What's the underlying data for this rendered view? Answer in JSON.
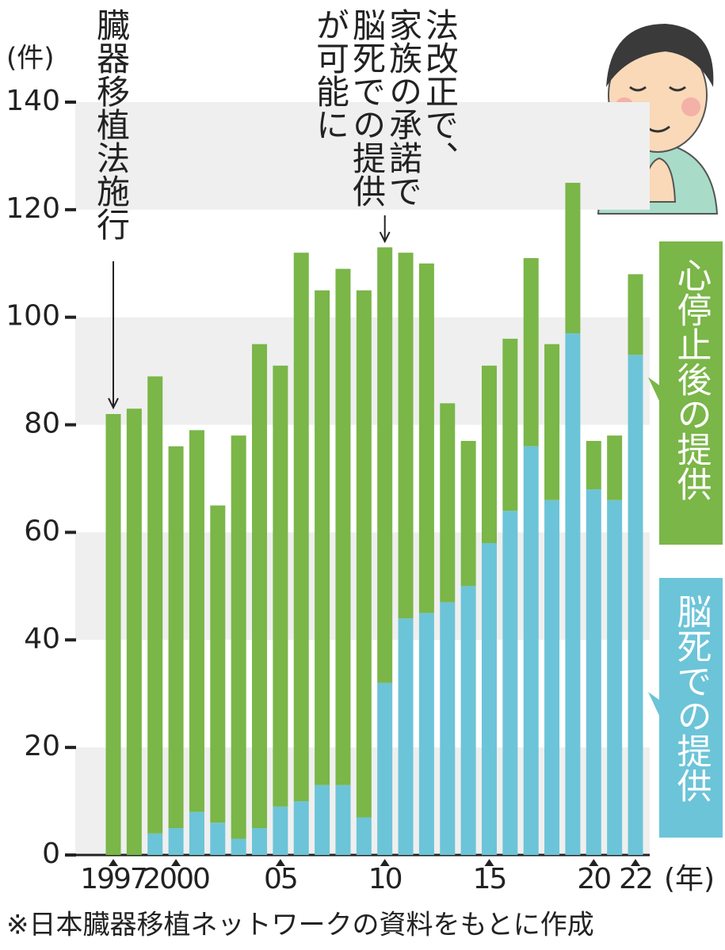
{
  "chart_data": {
    "type": "stacked_bar",
    "y_unit": "(件)",
    "x_unit": "(年)",
    "categories": [
      "1997",
      null,
      null,
      "2000",
      null,
      null,
      null,
      null,
      "05",
      null,
      null,
      null,
      null,
      "10",
      null,
      null,
      null,
      null,
      "15",
      null,
      null,
      null,
      null,
      "20",
      null,
      "22"
    ],
    "series": [
      {
        "name": "脳死での提供",
        "color": "#6cc4d8",
        "values": [
          0,
          0,
          4,
          5,
          8,
          6,
          3,
          5,
          9,
          10,
          13,
          13,
          7,
          32,
          44,
          45,
          47,
          50,
          58,
          64,
          76,
          66,
          97,
          68,
          66,
          93
        ]
      },
      {
        "name": "心停止後の提供",
        "color": "#7ab648",
        "values": [
          82,
          83,
          85,
          71,
          71,
          59,
          75,
          90,
          82,
          102,
          92,
          96,
          98,
          81,
          68,
          65,
          37,
          27,
          33,
          32,
          35,
          29,
          28,
          9,
          12,
          15
        ]
      }
    ],
    "ylim": [
      0,
      140
    ],
    "yticks": [
      0,
      20,
      40,
      60,
      80,
      100,
      120,
      140
    ],
    "grid": true,
    "annotations": [
      {
        "lines": [
          "臓器移植法施行"
        ]
      },
      {
        "lines": [
          "法改正で、",
          "家族の承諾で",
          "脳死での提供",
          "が可能に"
        ]
      }
    ],
    "source": "※日本臓器移植ネットワークの資料をもとに作成"
  }
}
